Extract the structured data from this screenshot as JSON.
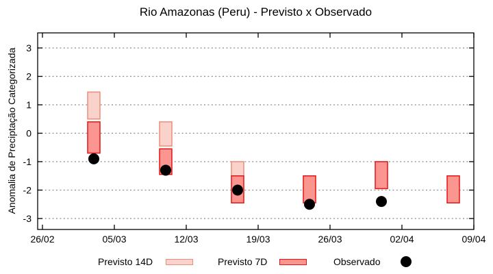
{
  "chart_data": {
    "type": "bar",
    "subtype": "range-bars-with-observed-points",
    "title": "Rio Amazonas (Peru) - Previsto x Observado",
    "xlabel": "",
    "ylabel": "Anomalia de Preciptação Categorizada",
    "ylim": [
      -3.4,
      3.55
    ],
    "xlim_days": [
      -0.5,
      42
    ],
    "grid": "horizontal-dotted-only",
    "legend_position": "bottom-outside",
    "y_ticks": [
      3,
      2,
      1,
      0,
      -1,
      -2,
      -3
    ],
    "x_ticks": [
      {
        "day": 0,
        "label": "26/02"
      },
      {
        "day": 7,
        "label": "05/03"
      },
      {
        "day": 14,
        "label": "12/03"
      },
      {
        "day": 21,
        "label": "19/03"
      },
      {
        "day": 28,
        "label": "26/03"
      },
      {
        "day": 35,
        "label": "02/04"
      },
      {
        "day": 42,
        "label": "09/04"
      }
    ],
    "series": [
      {
        "name": "Previsto 14D",
        "type": "range-bar",
        "fill": "#f9d2cb",
        "border": "#ee8b7a"
      },
      {
        "name": "Previsto 7D",
        "type": "range-bar",
        "fill": "#fa9590",
        "border": "#e51414"
      },
      {
        "name": "Observado",
        "type": "point",
        "color": "#000000"
      }
    ],
    "points": [
      {
        "date": "03/03",
        "day": 5,
        "previsto_14d": [
          0.5,
          1.45
        ],
        "previsto_7d": [
          -0.7,
          0.4
        ],
        "observado": -0.9
      },
      {
        "date": "10/03",
        "day": 12,
        "previsto_14d": [
          -0.45,
          0.4
        ],
        "previsto_7d": [
          -1.45,
          -0.55
        ],
        "observado": -1.3
      },
      {
        "date": "17/03",
        "day": 19,
        "previsto_14d": [
          -1.5,
          -1.0
        ],
        "previsto_7d": [
          -2.45,
          -1.5
        ],
        "observado": -2.0
      },
      {
        "date": "24/03",
        "day": 26,
        "previsto_14d": null,
        "previsto_7d": [
          -2.45,
          -1.5
        ],
        "observado": -2.5
      },
      {
        "date": "31/03",
        "day": 33,
        "previsto_14d": null,
        "previsto_7d": [
          -1.95,
          -1.0
        ],
        "observado": -2.4
      },
      {
        "date": "07/04",
        "day": 40,
        "previsto_14d": null,
        "previsto_7d": [
          -2.45,
          -1.5
        ],
        "observado": null
      }
    ],
    "colors": {
      "background": "#ffffff",
      "axis": "#000000",
      "grid": "#8a8a8a",
      "text": "#000000"
    }
  }
}
